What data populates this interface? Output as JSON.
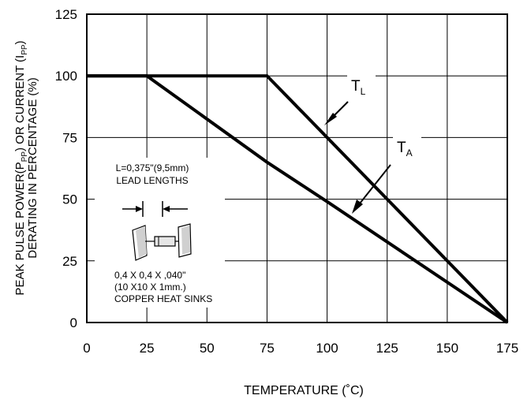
{
  "chart_data": {
    "type": "line",
    "title": "",
    "xlabel": "TEMPERATURE (˚C)",
    "ylabel": "PEAK PULSE POWER(P",
    "ylabel_sub1": "PP",
    "ylabel_mid": ") OR CURRENT (I",
    "ylabel_sub2": "PP",
    "ylabel_end": ")",
    "ylabel2": "DERATING IN PERCENTAGE (%)",
    "xlim": [
      0,
      175
    ],
    "ylim": [
      0,
      125
    ],
    "x_ticks": [
      0,
      25,
      50,
      75,
      100,
      125,
      150,
      175
    ],
    "y_ticks": [
      0,
      25,
      50,
      75,
      100,
      125
    ],
    "grid": true,
    "series": [
      {
        "name": "T",
        "sub": "L",
        "x": [
          0,
          75,
          175
        ],
        "y": [
          100,
          100,
          0
        ]
      },
      {
        "name": "T",
        "sub": "A",
        "x": [
          0,
          25,
          75,
          100,
          175
        ],
        "y": [
          100,
          100,
          65,
          49,
          0
        ]
      }
    ],
    "inset": {
      "line1": "L=0,375\"(9,5mm)",
      "line2": "LEAD LENGTHS",
      "line3": "0,4 X 0,4 X ,040\"",
      "line4": "(10 X10 X 1mm.)",
      "line5": "COPPER HEAT SINKS"
    }
  }
}
